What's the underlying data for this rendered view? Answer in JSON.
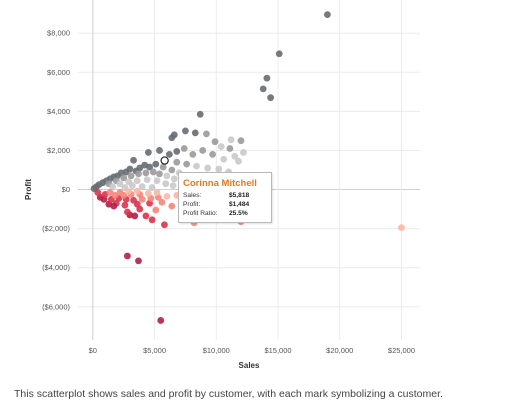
{
  "chart_data": {
    "type": "scatter",
    "xlabel": "Sales",
    "ylabel": "Profit",
    "xlim": [
      -1200,
      26500
    ],
    "ylim": [
      -7700,
      9700
    ],
    "x_ticks": [
      0,
      5000,
      10000,
      15000,
      20000,
      25000
    ],
    "x_tick_labels": [
      "$0",
      "$5,000",
      "$10,000",
      "$15,000",
      "$20,000",
      "$25,000"
    ],
    "y_ticks": [
      8000,
      6000,
      4000,
      2000,
      0,
      -2000,
      -4000,
      -6000
    ],
    "y_tick_labels": [
      "$8,000",
      "$6,000",
      "$4,000",
      "$2,000",
      "$0",
      "($2,000)",
      "($4,000)",
      "($6,000)"
    ],
    "grid": true,
    "legend": "none",
    "color_encoding": "profit ratio (diverging: dark red = negative, gray = positive)",
    "colors": {
      "strong_negative": "#b51f46",
      "negative": "#d9344e",
      "mild_negative": "#f5857a",
      "slight_negative": "#f9b7a4",
      "light_positive": "#c9c9c9",
      "positive": "#9a9a9a",
      "strong_positive": "#666d73",
      "highlight_stroke": "#222222"
    },
    "points": [
      {
        "x": 19000,
        "y": 8950,
        "c": "strong_positive"
      },
      {
        "x": 15100,
        "y": 6950,
        "c": "strong_positive"
      },
      {
        "x": 14100,
        "y": 5700,
        "c": "strong_positive"
      },
      {
        "x": 13800,
        "y": 5150,
        "c": "strong_positive"
      },
      {
        "x": 14400,
        "y": 4700,
        "c": "strong_positive"
      },
      {
        "x": 8700,
        "y": 3850,
        "c": "strong_positive"
      },
      {
        "x": 7500,
        "y": 3000,
        "c": "strong_positive"
      },
      {
        "x": 6600,
        "y": 2800,
        "c": "strong_positive"
      },
      {
        "x": 6400,
        "y": 2650,
        "c": "strong_positive"
      },
      {
        "x": 8300,
        "y": 2900,
        "c": "strong_positive"
      },
      {
        "x": 9200,
        "y": 2850,
        "c": "positive"
      },
      {
        "x": 9900,
        "y": 2450,
        "c": "positive"
      },
      {
        "x": 11200,
        "y": 2550,
        "c": "light_positive"
      },
      {
        "x": 12000,
        "y": 2500,
        "c": "positive"
      },
      {
        "x": 10400,
        "y": 2200,
        "c": "light_positive"
      },
      {
        "x": 11100,
        "y": 2100,
        "c": "positive"
      },
      {
        "x": 12200,
        "y": 1900,
        "c": "light_positive"
      },
      {
        "x": 11500,
        "y": 1700,
        "c": "light_positive"
      },
      {
        "x": 11800,
        "y": 1450,
        "c": "light_positive"
      },
      {
        "x": 10600,
        "y": 1550,
        "c": "light_positive"
      },
      {
        "x": 9700,
        "y": 1800,
        "c": "positive"
      },
      {
        "x": 8900,
        "y": 2000,
        "c": "positive"
      },
      {
        "x": 8100,
        "y": 1800,
        "c": "positive"
      },
      {
        "x": 7400,
        "y": 2100,
        "c": "positive"
      },
      {
        "x": 6800,
        "y": 1950,
        "c": "strong_positive"
      },
      {
        "x": 6200,
        "y": 1800,
        "c": "strong_positive"
      },
      {
        "x": 5400,
        "y": 2000,
        "c": "strong_positive"
      },
      {
        "x": 4500,
        "y": 1900,
        "c": "strong_positive"
      },
      {
        "x": 3300,
        "y": 1500,
        "c": "strong_positive"
      },
      {
        "x": 5818,
        "y": 1484,
        "c": "highlight"
      },
      {
        "x": 6800,
        "y": 1400,
        "c": "positive"
      },
      {
        "x": 7600,
        "y": 1300,
        "c": "positive"
      },
      {
        "x": 8400,
        "y": 1200,
        "c": "light_positive"
      },
      {
        "x": 9300,
        "y": 1100,
        "c": "light_positive"
      },
      {
        "x": 10200,
        "y": 1050,
        "c": "light_positive"
      },
      {
        "x": 11000,
        "y": 900,
        "c": "light_positive"
      },
      {
        "x": 9800,
        "y": 700,
        "c": "light_positive"
      },
      {
        "x": 8900,
        "y": 500,
        "c": "light_positive"
      },
      {
        "x": 7900,
        "y": 650,
        "c": "light_positive"
      },
      {
        "x": 7000,
        "y": 850,
        "c": "light_positive"
      },
      {
        "x": 6400,
        "y": 1000,
        "c": "positive"
      },
      {
        "x": 5700,
        "y": 1150,
        "c": "positive"
      },
      {
        "x": 5100,
        "y": 1300,
        "c": "strong_positive"
      },
      {
        "x": 4600,
        "y": 1150,
        "c": "strong_positive"
      },
      {
        "x": 4200,
        "y": 1250,
        "c": "strong_positive"
      },
      {
        "x": 3800,
        "y": 1100,
        "c": "strong_positive"
      },
      {
        "x": 3500,
        "y": 950,
        "c": "strong_positive"
      },
      {
        "x": 3000,
        "y": 1050,
        "c": "strong_positive"
      },
      {
        "x": 2700,
        "y": 900,
        "c": "strong_positive"
      },
      {
        "x": 2300,
        "y": 850,
        "c": "strong_positive"
      },
      {
        "x": 2000,
        "y": 700,
        "c": "strong_positive"
      },
      {
        "x": 1700,
        "y": 650,
        "c": "strong_positive"
      },
      {
        "x": 1400,
        "y": 550,
        "c": "strong_positive"
      },
      {
        "x": 1100,
        "y": 450,
        "c": "strong_positive"
      },
      {
        "x": 800,
        "y": 350,
        "c": "strong_positive"
      },
      {
        "x": 500,
        "y": 250,
        "c": "strong_positive"
      },
      {
        "x": 300,
        "y": 150,
        "c": "strong_positive"
      },
      {
        "x": 100,
        "y": 50,
        "c": "strong_positive"
      },
      {
        "x": 1300,
        "y": 300,
        "c": "positive"
      },
      {
        "x": 1900,
        "y": 450,
        "c": "positive"
      },
      {
        "x": 2500,
        "y": 600,
        "c": "positive"
      },
      {
        "x": 3100,
        "y": 700,
        "c": "positive"
      },
      {
        "x": 3700,
        "y": 800,
        "c": "positive"
      },
      {
        "x": 4300,
        "y": 850,
        "c": "positive"
      },
      {
        "x": 4900,
        "y": 900,
        "c": "positive"
      },
      {
        "x": 5400,
        "y": 800,
        "c": "positive"
      },
      {
        "x": 6000,
        "y": 700,
        "c": "light_positive"
      },
      {
        "x": 6600,
        "y": 550,
        "c": "light_positive"
      },
      {
        "x": 7200,
        "y": 400,
        "c": "light_positive"
      },
      {
        "x": 2200,
        "y": 300,
        "c": "light_positive"
      },
      {
        "x": 2900,
        "y": 400,
        "c": "light_positive"
      },
      {
        "x": 3600,
        "y": 450,
        "c": "light_positive"
      },
      {
        "x": 4400,
        "y": 500,
        "c": "light_positive"
      },
      {
        "x": 5200,
        "y": 450,
        "c": "light_positive"
      },
      {
        "x": 5900,
        "y": 300,
        "c": "light_positive"
      },
      {
        "x": 6500,
        "y": 200,
        "c": "light_positive"
      },
      {
        "x": 3200,
        "y": 200,
        "c": "light_positive"
      },
      {
        "x": 4000,
        "y": 150,
        "c": "light_positive"
      },
      {
        "x": 4800,
        "y": 100,
        "c": "light_positive"
      },
      {
        "x": 1600,
        "y": 150,
        "c": "light_positive"
      },
      {
        "x": 2600,
        "y": 100,
        "c": "light_positive"
      },
      {
        "x": 25000,
        "y": -1950,
        "c": "slight_negative"
      },
      {
        "x": 12000,
        "y": -1650,
        "c": "mild_negative"
      },
      {
        "x": 8200,
        "y": -1700,
        "c": "mild_negative"
      },
      {
        "x": 5800,
        "y": -1800,
        "c": "negative"
      },
      {
        "x": 4800,
        "y": -1550,
        "c": "negative"
      },
      {
        "x": 4300,
        "y": -1350,
        "c": "negative"
      },
      {
        "x": 3400,
        "y": -1350,
        "c": "strong_negative"
      },
      {
        "x": 3000,
        "y": -1300,
        "c": "strong_negative"
      },
      {
        "x": 2800,
        "y": -1150,
        "c": "negative"
      },
      {
        "x": 3800,
        "y": -1000,
        "c": "negative"
      },
      {
        "x": 5100,
        "y": -1050,
        "c": "mild_negative"
      },
      {
        "x": 6400,
        "y": -850,
        "c": "mild_negative"
      },
      {
        "x": 7200,
        "y": -750,
        "c": "slight_negative"
      },
      {
        "x": 5600,
        "y": -650,
        "c": "mild_negative"
      },
      {
        "x": 4600,
        "y": -700,
        "c": "negative"
      },
      {
        "x": 3600,
        "y": -750,
        "c": "negative"
      },
      {
        "x": 2600,
        "y": -800,
        "c": "negative"
      },
      {
        "x": 1900,
        "y": -700,
        "c": "negative"
      },
      {
        "x": 1300,
        "y": -750,
        "c": "strong_negative"
      },
      {
        "x": 1700,
        "y": -850,
        "c": "strong_negative"
      },
      {
        "x": 900,
        "y": -500,
        "c": "strong_negative"
      },
      {
        "x": 600,
        "y": -400,
        "c": "strong_negative"
      },
      {
        "x": 1500,
        "y": -500,
        "c": "negative"
      },
      {
        "x": 2100,
        "y": -450,
        "c": "negative"
      },
      {
        "x": 2700,
        "y": -500,
        "c": "negative"
      },
      {
        "x": 3300,
        "y": -550,
        "c": "negative"
      },
      {
        "x": 4000,
        "y": -500,
        "c": "mild_negative"
      },
      {
        "x": 4700,
        "y": -450,
        "c": "mild_negative"
      },
      {
        "x": 5300,
        "y": -400,
        "c": "mild_negative"
      },
      {
        "x": 6000,
        "y": -350,
        "c": "slight_negative"
      },
      {
        "x": 6800,
        "y": -300,
        "c": "slight_negative"
      },
      {
        "x": 1000,
        "y": -250,
        "c": "negative"
      },
      {
        "x": 1800,
        "y": -300,
        "c": "mild_negative"
      },
      {
        "x": 2500,
        "y": -300,
        "c": "mild_negative"
      },
      {
        "x": 3100,
        "y": -250,
        "c": "mild_negative"
      },
      {
        "x": 3800,
        "y": -250,
        "c": "mild_negative"
      },
      {
        "x": 4500,
        "y": -200,
        "c": "slight_negative"
      },
      {
        "x": 5200,
        "y": -150,
        "c": "slight_negative"
      },
      {
        "x": 400,
        "y": -150,
        "c": "negative"
      },
      {
        "x": 1400,
        "y": -150,
        "c": "mild_negative"
      },
      {
        "x": 2200,
        "y": -150,
        "c": "mild_negative"
      },
      {
        "x": 2900,
        "y": -100,
        "c": "slight_negative"
      },
      {
        "x": 3600,
        "y": -80,
        "c": "slight_negative"
      },
      {
        "x": 2800,
        "y": -3400,
        "c": "strong_negative"
      },
      {
        "x": 3700,
        "y": -3650,
        "c": "strong_negative"
      },
      {
        "x": 5500,
        "y": -6700,
        "c": "strong_negative"
      }
    ],
    "tooltip": {
      "name": "Corinna Mitchell",
      "rows": [
        {
          "label": "Sales:",
          "value": "$5,818"
        },
        {
          "label": "Profit:",
          "value": "$1,484"
        },
        {
          "label": "Profit Ratio:",
          "value": "25.5%"
        }
      ]
    }
  },
  "caption": "This scatterplot shows sales and profit by customer, with each mark symbolizing a customer."
}
